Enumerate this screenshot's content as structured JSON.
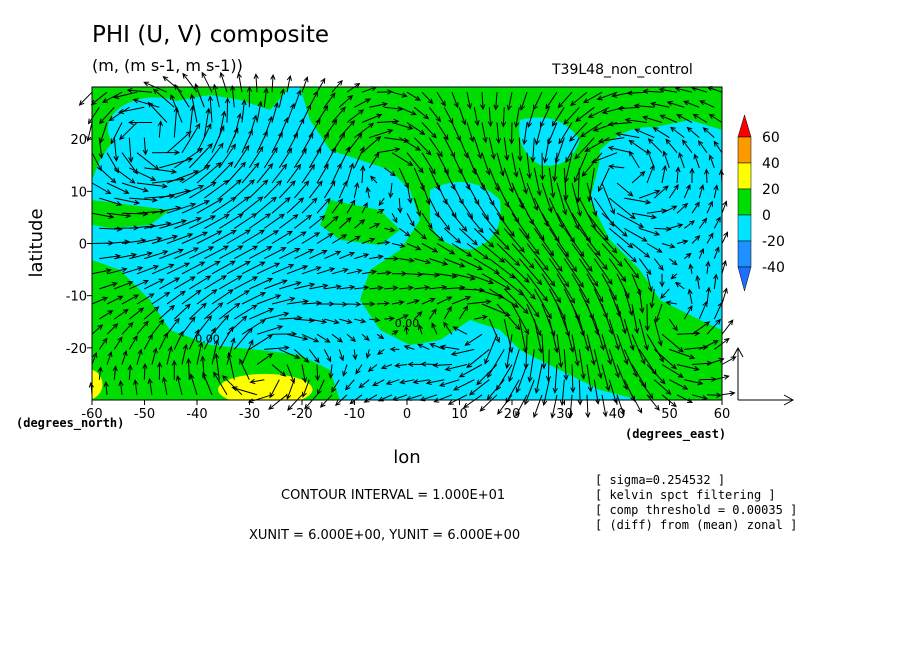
{
  "chart_data": {
    "type": "heatmap",
    "title": "PHI (U, V) composite",
    "units_label": "(m, (m s-1, m s-1))",
    "experiment": "T39L48_non_control",
    "xlabel": "lon",
    "ylabel": "latitude",
    "x_unit_label": "(degrees_east)",
    "y_unit_label": "(degrees_north)",
    "xlim": [
      -60,
      60
    ],
    "ylim": [
      -30,
      30
    ],
    "x_ticks": [
      "-60",
      "-50",
      "-40",
      "-30",
      "-20",
      "-10",
      "0",
      "10",
      "20",
      "30",
      "40",
      "50",
      "60"
    ],
    "y_ticks": [
      "-20",
      "-10",
      "0",
      "10",
      "20"
    ],
    "legend": {
      "placement": "right",
      "labels": [
        "60",
        "40",
        "20",
        "0",
        "-20",
        "-40"
      ],
      "bins": [
        {
          "range": [
            40,
            60
          ],
          "color": "#ff9900"
        },
        {
          "range": [
            20,
            40
          ],
          "color": "#ffff00"
        },
        {
          "range": [
            0,
            20
          ],
          "color": "#00dd00"
        },
        {
          "range": [
            -20,
            0
          ],
          "color": "#00e5ff"
        },
        {
          "range": [
            -40,
            -20
          ],
          "color": "#1e90ff"
        }
      ],
      "over_color": "#ff0000",
      "under_color": "#1f6fff"
    },
    "contour_labels": [
      {
        "text": "0.00",
        "lon": -38,
        "lat": -19
      },
      {
        "text": "0.00",
        "lon": 0,
        "lat": -16
      }
    ],
    "field_regions": [
      {
        "level": "-20",
        "center": [
          -48,
          22
        ],
        "extent": [
          9,
          6
        ]
      },
      {
        "level": "-20",
        "center": [
          16,
          -25
        ],
        "extent": [
          12,
          4
        ]
      },
      {
        "level": "20",
        "center": [
          -27,
          -28
        ],
        "extent": [
          9,
          3
        ]
      },
      {
        "level": "20",
        "center": [
          -61,
          -27
        ],
        "extent": [
          3,
          3
        ]
      }
    ],
    "vector_reference": {
      "xunit": 6.0,
      "yunit": 6.0
    }
  },
  "notes": {
    "contour_interval": "CONTOUR INTERVAL = 1.000E+01",
    "xyunit": "XUNIT = 6.000E+00, YUNIT = 6.000E+00",
    "sigma": "[ sigma=0.254532 ]",
    "filter": "[ kelvin spct filtering ]",
    "threshold": "[ comp threshold = 0.00035 ]",
    "diff": "[ (diff) from (mean) zonal ]"
  }
}
